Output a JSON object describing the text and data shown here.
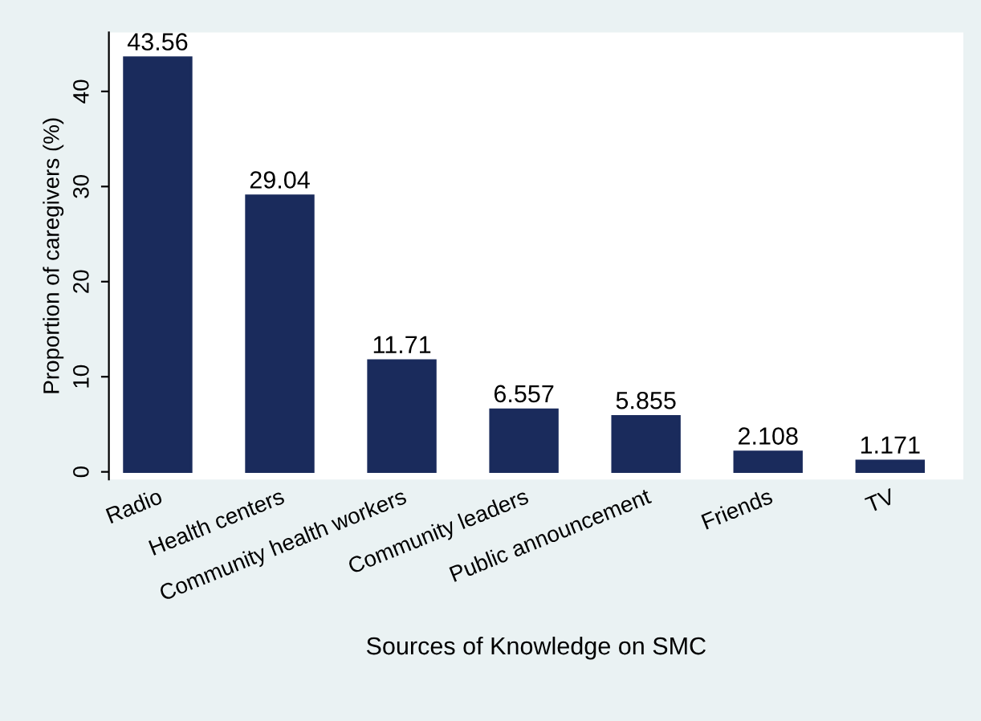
{
  "chart_data": {
    "type": "bar",
    "xlabel": "Sources of Knowledge on SMC",
    "ylabel": "Proportion of caregivers (%)",
    "categories": [
      "Radio",
      "Health centers",
      "Community health workers",
      "Community leaders",
      "Public announcement",
      "Friends",
      "TV"
    ],
    "values": [
      43.56,
      29.04,
      11.71,
      6.557,
      5.855,
      2.108,
      1.171
    ],
    "color": "#1a2b5c",
    "data_labels": true,
    "ylim": [
      -0.8,
      46.2
    ],
    "yticks": [
      0,
      10,
      20,
      30,
      40
    ],
    "grid": false,
    "legend": false
  }
}
